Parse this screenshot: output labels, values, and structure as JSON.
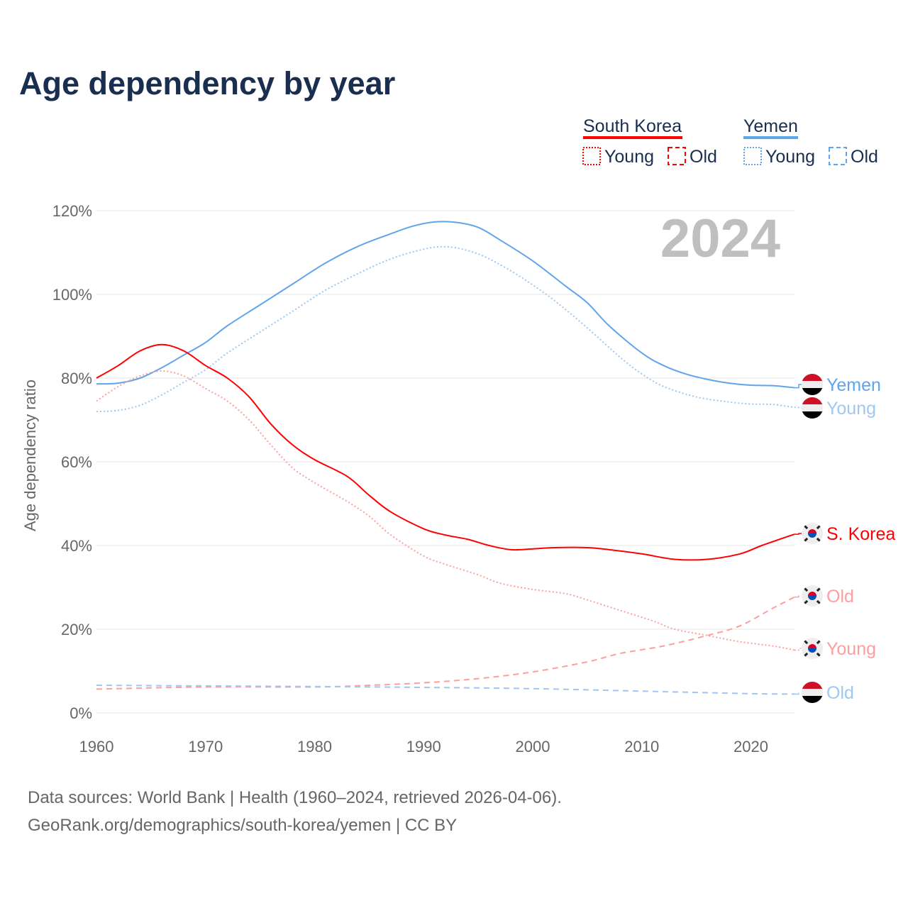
{
  "title": "Age dependency by year",
  "year_watermark": "2024",
  "legend": {
    "groups": [
      {
        "name": "South Korea",
        "color": "#ff0000",
        "items": [
          "Young",
          "Old"
        ]
      },
      {
        "name": "Yemen",
        "color": "#5fa5ea",
        "items": [
          "Young",
          "Old"
        ]
      }
    ]
  },
  "source": {
    "line1": "Data sources: World Bank | Health (1960–2024, retrieved 2026-04-06).",
    "line2": "GeoRank.org/demographics/south-korea/yemen | CC BY"
  },
  "chart_data": {
    "type": "line",
    "title": "Age dependency by year",
    "xlabel": "",
    "ylabel": "Age dependency ratio",
    "xlim": [
      1960,
      2024
    ],
    "ylim": [
      0,
      120
    ],
    "xticks": [
      "1960",
      "1970",
      "1980",
      "1990",
      "2000",
      "2010",
      "2020"
    ],
    "yticks": [
      "0%",
      "20%",
      "40%",
      "60%",
      "80%",
      "100%",
      "120%"
    ],
    "grid": true,
    "series": [
      {
        "name": "Yemen",
        "end_label": "Yemen",
        "flag": "yemen",
        "color": "#5fa5ea",
        "style": "solid",
        "points": [
          [
            1960,
            78.6
          ],
          [
            1962,
            78.8
          ],
          [
            1964,
            80
          ],
          [
            1966,
            82.5
          ],
          [
            1968,
            85.5
          ],
          [
            1970,
            88.5
          ],
          [
            1972,
            92.5
          ],
          [
            1975,
            97.5
          ],
          [
            1978,
            102.5
          ],
          [
            1981,
            107.5
          ],
          [
            1984,
            111.5
          ],
          [
            1987,
            114.5
          ],
          [
            1989,
            116.3
          ],
          [
            1991,
            117.3
          ],
          [
            1993,
            117.2
          ],
          [
            1995,
            116
          ],
          [
            1997,
            113
          ],
          [
            2000,
            108
          ],
          [
            2003,
            102
          ],
          [
            2005,
            98
          ],
          [
            2007,
            92.5
          ],
          [
            2010,
            86
          ],
          [
            2012,
            83
          ],
          [
            2014,
            81
          ],
          [
            2016,
            79.7
          ],
          [
            2018,
            78.8
          ],
          [
            2020,
            78.3
          ],
          [
            2022,
            78.2
          ],
          [
            2024,
            77.7
          ]
        ]
      },
      {
        "name": "Yemen Young",
        "end_label": "Young",
        "flag": "yemen",
        "color": "#9fc7f2",
        "style": "dotted",
        "points": [
          [
            1960,
            72
          ],
          [
            1962,
            72.3
          ],
          [
            1964,
            73.5
          ],
          [
            1966,
            76
          ],
          [
            1968,
            79
          ],
          [
            1970,
            82
          ],
          [
            1972,
            86
          ],
          [
            1975,
            91
          ],
          [
            1978,
            96
          ],
          [
            1981,
            101
          ],
          [
            1984,
            105
          ],
          [
            1987,
            108.5
          ],
          [
            1990,
            110.8
          ],
          [
            1992,
            111.4
          ],
          [
            1994,
            110.5
          ],
          [
            1996,
            108.5
          ],
          [
            1999,
            104
          ],
          [
            2002,
            98.5
          ],
          [
            2005,
            92
          ],
          [
            2008,
            85
          ],
          [
            2010,
            81
          ],
          [
            2012,
            78
          ],
          [
            2015,
            75.5
          ],
          [
            2018,
            74.3
          ],
          [
            2020,
            73.8
          ],
          [
            2022,
            73.7
          ],
          [
            2024,
            73
          ]
        ]
      },
      {
        "name": "South Korea",
        "end_label": "S. Korea",
        "flag": "south-korea",
        "color": "#ff0000",
        "style": "solid",
        "points": [
          [
            1960,
            80
          ],
          [
            1962,
            83
          ],
          [
            1964,
            86.5
          ],
          [
            1966,
            88
          ],
          [
            1968,
            86.5
          ],
          [
            1970,
            83
          ],
          [
            1972,
            80
          ],
          [
            1974,
            75.5
          ],
          [
            1976,
            69
          ],
          [
            1978,
            64
          ],
          [
            1980,
            60.5
          ],
          [
            1983,
            56.5
          ],
          [
            1985,
            52
          ],
          [
            1987,
            48
          ],
          [
            1990,
            44
          ],
          [
            1992,
            42.5
          ],
          [
            1994,
            41.5
          ],
          [
            1996,
            40
          ],
          [
            1998,
            39
          ],
          [
            2000,
            39.2
          ],
          [
            2002,
            39.5
          ],
          [
            2005,
            39.5
          ],
          [
            2007,
            39
          ],
          [
            2010,
            38
          ],
          [
            2013,
            36.7
          ],
          [
            2016,
            36.7
          ],
          [
            2019,
            38
          ],
          [
            2021,
            40
          ],
          [
            2024,
            42.7
          ]
        ]
      },
      {
        "name": "South Korea Old",
        "end_label": "Old",
        "flag": "south-korea",
        "color": "#ff9e9e",
        "style": "dashed",
        "points": [
          [
            1960,
            5.7
          ],
          [
            1970,
            6.2
          ],
          [
            1980,
            6.2
          ],
          [
            1985,
            6.6
          ],
          [
            1990,
            7.2
          ],
          [
            1995,
            8.2
          ],
          [
            2000,
            9.8
          ],
          [
            2005,
            12.2
          ],
          [
            2008,
            14.2
          ],
          [
            2012,
            16
          ],
          [
            2016,
            18.5
          ],
          [
            2019,
            20.8
          ],
          [
            2022,
            25
          ],
          [
            2024,
            27.7
          ]
        ]
      },
      {
        "name": "South Korea Young",
        "end_label": "Young",
        "flag": "south-korea",
        "color": "#ff9e9e",
        "style": "dotted",
        "points": [
          [
            1960,
            74.5
          ],
          [
            1962,
            78
          ],
          [
            1964,
            80.5
          ],
          [
            1966,
            81.7
          ],
          [
            1968,
            80.5
          ],
          [
            1970,
            77.5
          ],
          [
            1972,
            74.5
          ],
          [
            1974,
            70
          ],
          [
            1976,
            64
          ],
          [
            1978,
            58.5
          ],
          [
            1980,
            55
          ],
          [
            1983,
            50.5
          ],
          [
            1985,
            47
          ],
          [
            1987,
            42.5
          ],
          [
            1990,
            37.5
          ],
          [
            1992,
            35.5
          ],
          [
            1995,
            33
          ],
          [
            1997,
            31
          ],
          [
            2000,
            29.5
          ],
          [
            2003,
            28.5
          ],
          [
            2005,
            27
          ],
          [
            2008,
            24.5
          ],
          [
            2011,
            22
          ],
          [
            2013,
            20
          ],
          [
            2016,
            18.5
          ],
          [
            2019,
            17
          ],
          [
            2022,
            16
          ],
          [
            2024,
            15
          ]
        ]
      },
      {
        "name": "Yemen Old",
        "end_label": "Old",
        "flag": "yemen",
        "color": "#9fc7f2",
        "style": "dashed",
        "points": [
          [
            1960,
            6.6
          ],
          [
            1980,
            6.3
          ],
          [
            1990,
            6.1
          ],
          [
            2000,
            5.8
          ],
          [
            2010,
            5.2
          ],
          [
            2020,
            4.6
          ],
          [
            2024,
            4.5
          ]
        ]
      }
    ]
  }
}
